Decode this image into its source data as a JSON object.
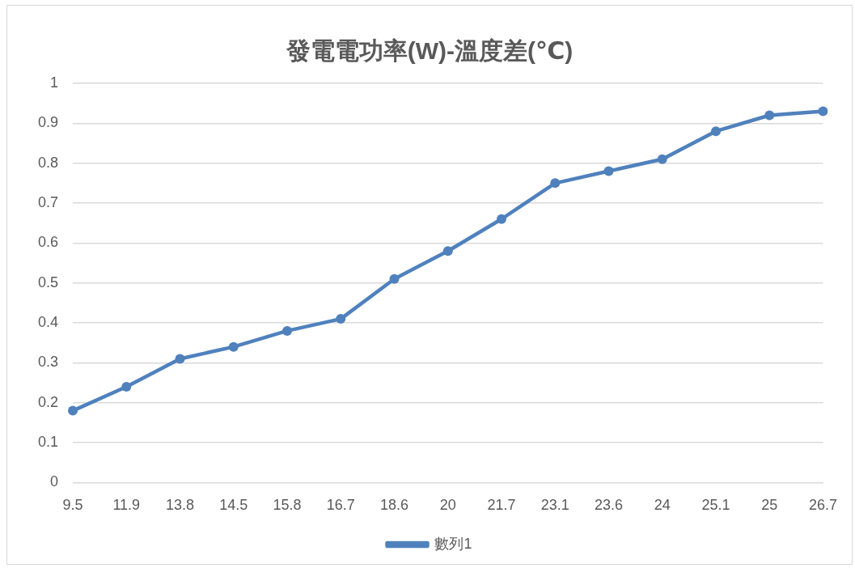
{
  "chart_data": {
    "type": "line",
    "title": "發電電功率(W)-溫度差(℃)",
    "categories": [
      "9.5",
      "11.9",
      "13.8",
      "14.5",
      "15.8",
      "16.7",
      "18.6",
      "20",
      "21.7",
      "23.1",
      "23.6",
      "24",
      "25.1",
      "25",
      "26.7"
    ],
    "series": [
      {
        "name": "數列1",
        "color": "#4f81bd",
        "values": [
          0.18,
          0.24,
          0.31,
          0.34,
          0.38,
          0.41,
          0.51,
          0.58,
          0.66,
          0.75,
          0.78,
          0.81,
          0.88,
          0.92,
          0.93
        ]
      }
    ],
    "ylim": [
      0,
      1
    ],
    "yticks": [
      0,
      0.1,
      0.2,
      0.3,
      0.4,
      0.5,
      0.6,
      0.7,
      0.8,
      0.9,
      1
    ],
    "grid": "y",
    "legend": "bottom",
    "marker": "circle",
    "line_style": "solid"
  }
}
